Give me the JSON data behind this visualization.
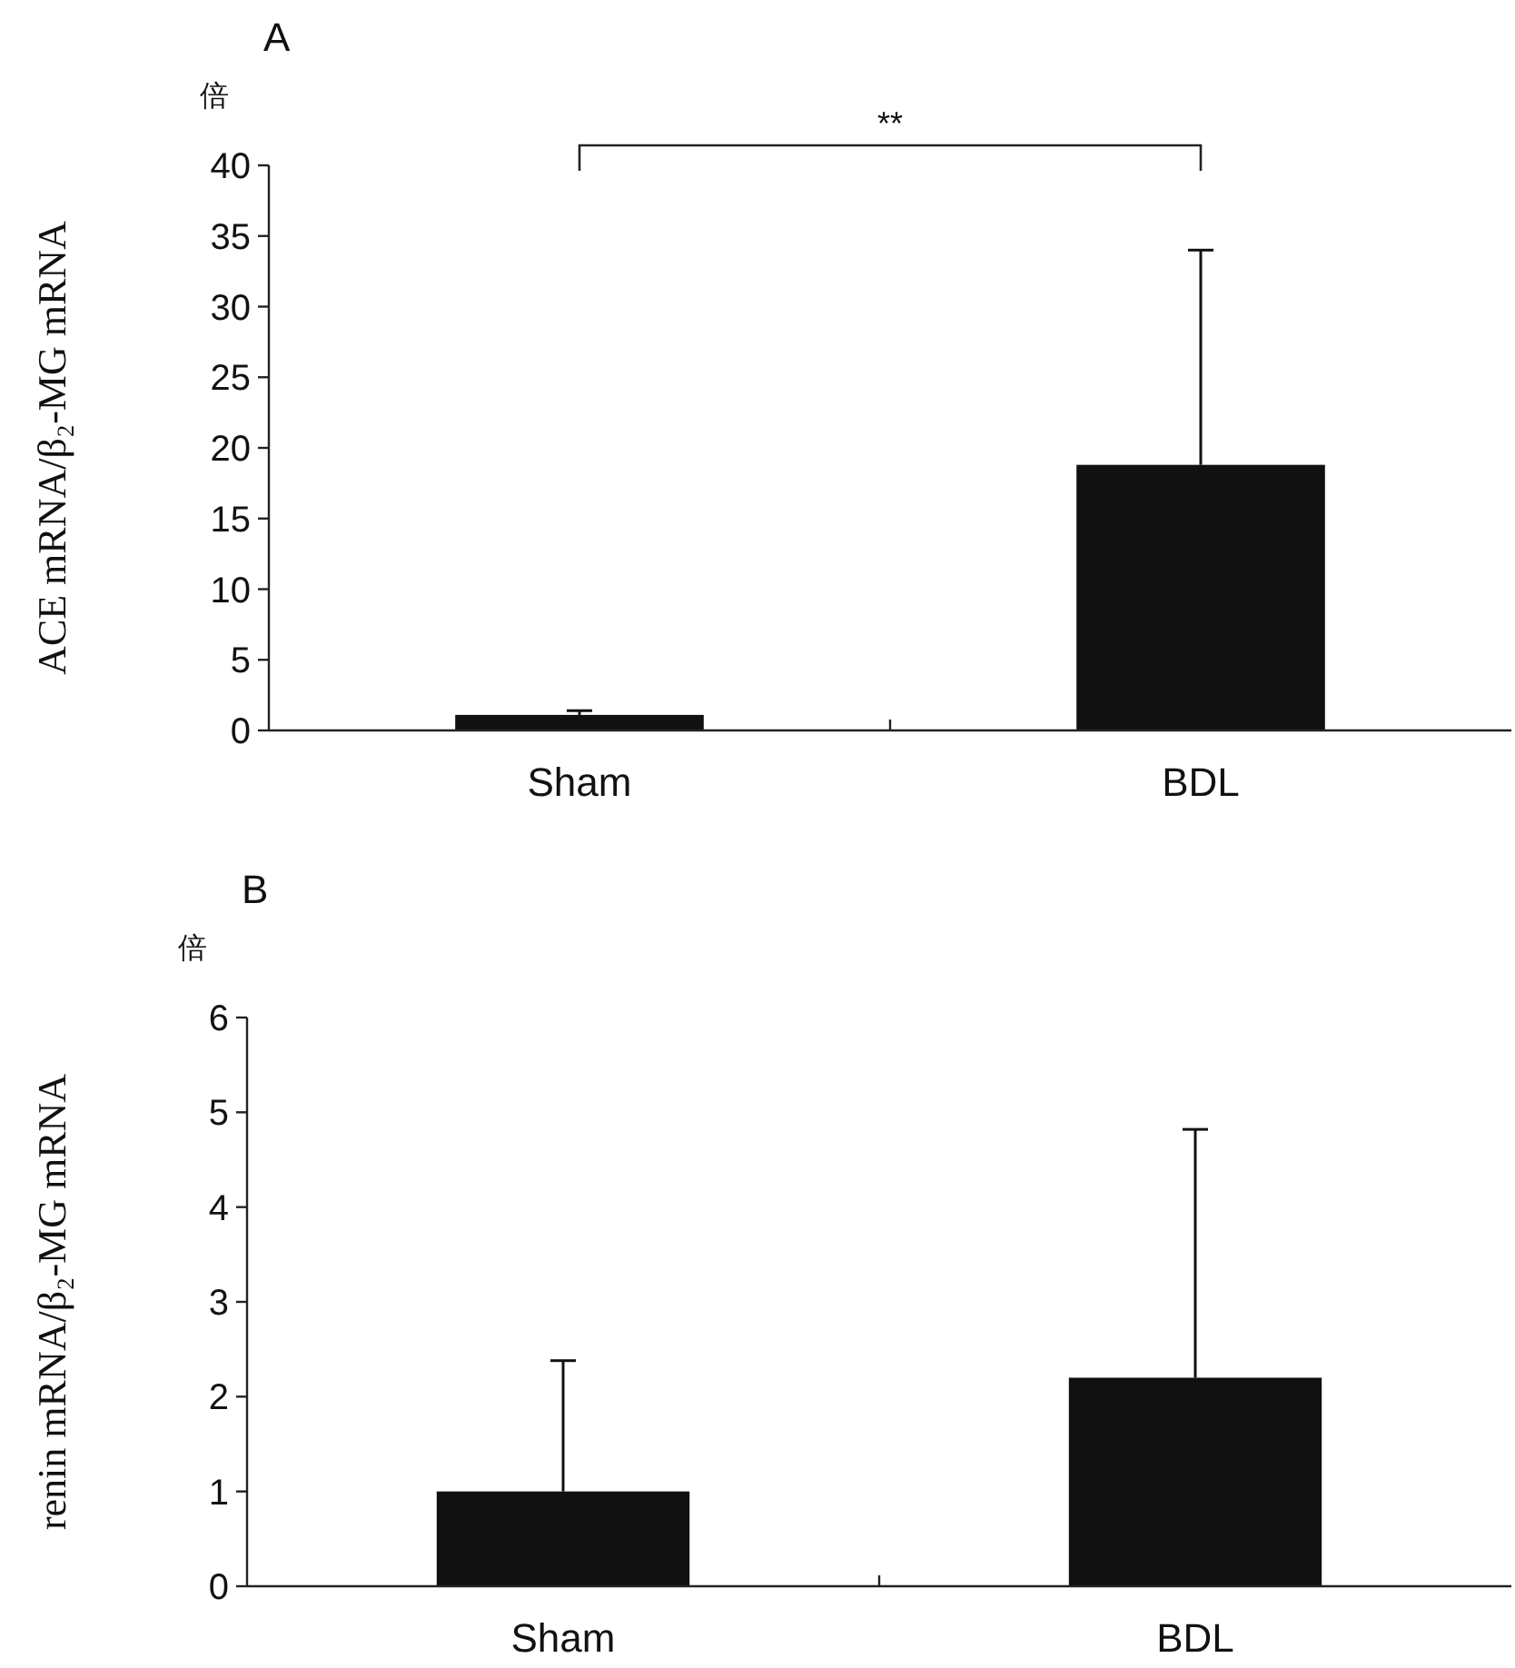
{
  "chart_data": [
    {
      "type": "bar",
      "title": "A",
      "ylabel": "ACE mRNA/β₂-MG mRNA",
      "annotations": [
        "倍",
        "**"
      ],
      "categories": [
        "Sham",
        "BDL"
      ],
      "values": [
        1.1,
        18.8
      ],
      "errors": [
        [
          1.1,
          1.4
        ],
        [
          18.8,
          34
        ]
      ],
      "color": "#111111",
      "ylim": [
        0,
        40
      ],
      "yticks": [
        0,
        5,
        10,
        15,
        20,
        25,
        30,
        35,
        40
      ]
    },
    {
      "type": "bar",
      "title": "B",
      "ylabel": "renin mRNA/β₂-MG mRNA",
      "annotations": [
        "倍"
      ],
      "categories": [
        "Sham",
        "BDL"
      ],
      "values": [
        1.0,
        2.2
      ],
      "errors": [
        [
          1.0,
          2.38
        ],
        [
          2.2,
          4.82
        ]
      ],
      "color": "#111111",
      "ylim": [
        0,
        6
      ],
      "yticks": [
        0,
        1,
        2,
        3,
        4,
        5,
        6
      ]
    }
  ]
}
